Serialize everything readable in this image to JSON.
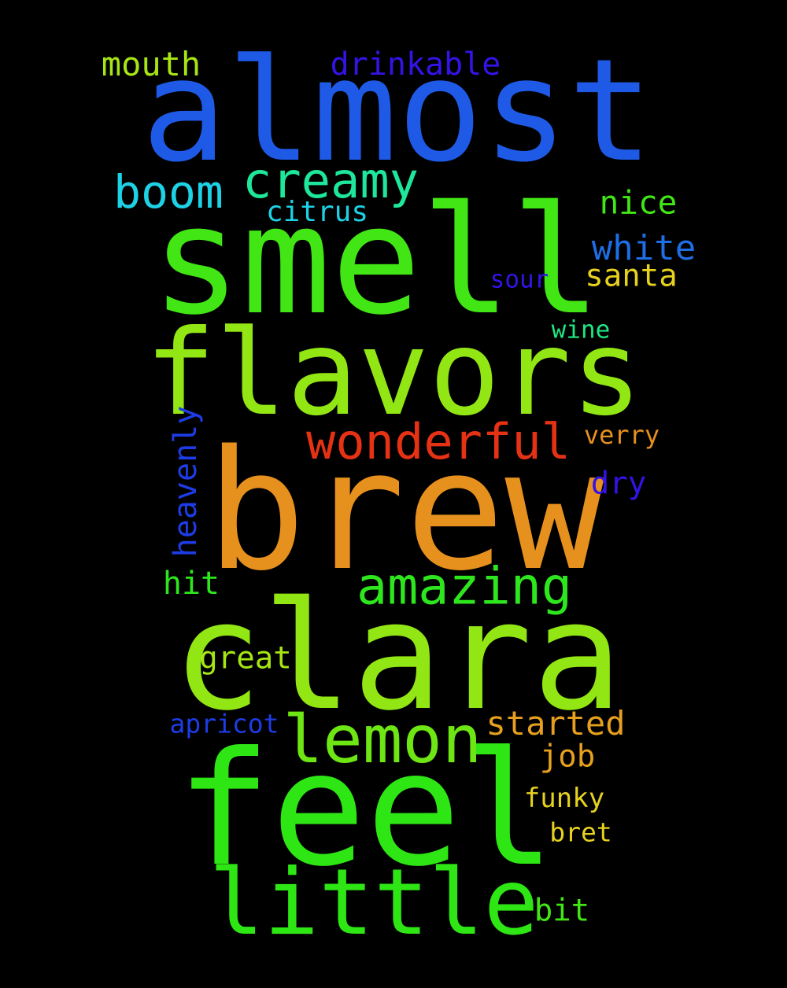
{
  "background_color": "#000000",
  "words": [
    {
      "text": "almost",
      "color": "#1e5ae6"
    },
    {
      "text": "smell",
      "color": "#41e614"
    },
    {
      "text": "flavors",
      "color": "#92e614"
    },
    {
      "text": "brew",
      "color": "#e6901e"
    },
    {
      "text": "clara",
      "color": "#92e614"
    },
    {
      "text": "feel",
      "color": "#2ee614"
    },
    {
      "text": "little",
      "color": "#2ee614"
    },
    {
      "text": "lemon",
      "color": "#6ee614"
    },
    {
      "text": "wonderful",
      "color": "#e63214"
    },
    {
      "text": "amazing",
      "color": "#2ee61e"
    },
    {
      "text": "creamy",
      "color": "#1ee69a"
    },
    {
      "text": "boom",
      "color": "#1ed2e6"
    },
    {
      "text": "mouth",
      "color": "#a6e614"
    },
    {
      "text": "drinkable",
      "color": "#3214e6"
    },
    {
      "text": "citrus",
      "color": "#1ed2e6"
    },
    {
      "text": "nice",
      "color": "#41e614"
    },
    {
      "text": "white",
      "color": "#1e6ee6"
    },
    {
      "text": "santa",
      "color": "#e6d21e"
    },
    {
      "text": "sour",
      "color": "#3214e6"
    },
    {
      "text": "wine",
      "color": "#1ee682"
    },
    {
      "text": "verry",
      "color": "#e6901e"
    },
    {
      "text": "heavenly",
      "color": "#1e3ce6"
    },
    {
      "text": "dry",
      "color": "#3214e6"
    },
    {
      "text": "hit",
      "color": "#2ee61e"
    },
    {
      "text": "great",
      "color": "#a6e614"
    },
    {
      "text": "apricot",
      "color": "#1e3ce6"
    },
    {
      "text": "started",
      "color": "#e6a01e"
    },
    {
      "text": "job",
      "color": "#e6a01e"
    },
    {
      "text": "funky",
      "color": "#e6d21e"
    },
    {
      "text": "bret",
      "color": "#e6d21e"
    },
    {
      "text": "bit",
      "color": "#41e614"
    }
  ]
}
